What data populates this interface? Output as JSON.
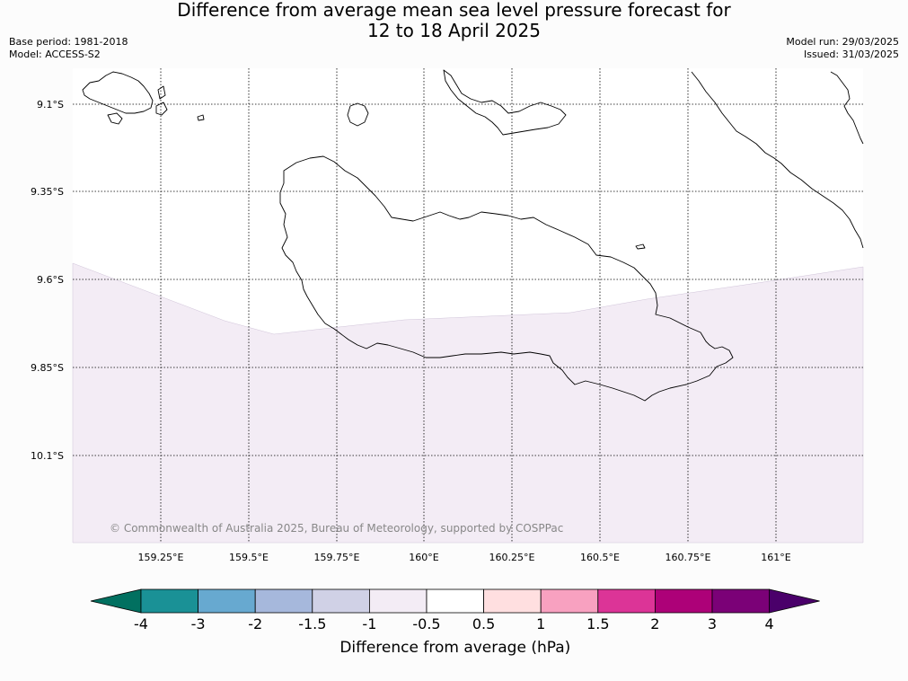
{
  "title": {
    "line1": "Difference from average mean sea level pressure forecast for",
    "line2": "12 to 18 April 2025"
  },
  "meta": {
    "base_period": "Base period: 1981-2018",
    "model": "Model: ACCESS-S2",
    "model_run": "Model run: 29/03/2025",
    "issued": "Issued: 31/03/2025"
  },
  "map": {
    "lat_labels": [
      "9.1°S",
      "9.35°S",
      "9.6°S",
      "9.85°S",
      "10.1°S"
    ],
    "lon_labels": [
      "159.25°E",
      "159.5°E",
      "159.75°E",
      "160°E",
      "160.25°E",
      "160.5°E",
      "160.75°E",
      "161°E"
    ],
    "copyright": "© Commonwealth of Australia 2025, Bureau of Meteorology, supported by COSPPac",
    "shaded_category": "-1 to -0.5",
    "shaded_color": "#f3ecf5",
    "coastline_color": "#000000"
  },
  "colorbar": {
    "title": "Difference from average (hPa)",
    "ticks": [
      "-4",
      "-3",
      "-2",
      "-1.5",
      "-1",
      "-0.5",
      "0.5",
      "1",
      "1.5",
      "2",
      "3",
      "4"
    ],
    "colors": [
      "#1a9196",
      "#67a9d0",
      "#a6b8dc",
      "#d0d1e6",
      "#f3ecf5",
      "#ffffff",
      "#ffdfe0",
      "#f8a1c0",
      "#dc3497",
      "#ad0178",
      "#7b0177"
    ],
    "extend_low_color": "#017060",
    "extend_high_color": "#4a006a"
  }
}
